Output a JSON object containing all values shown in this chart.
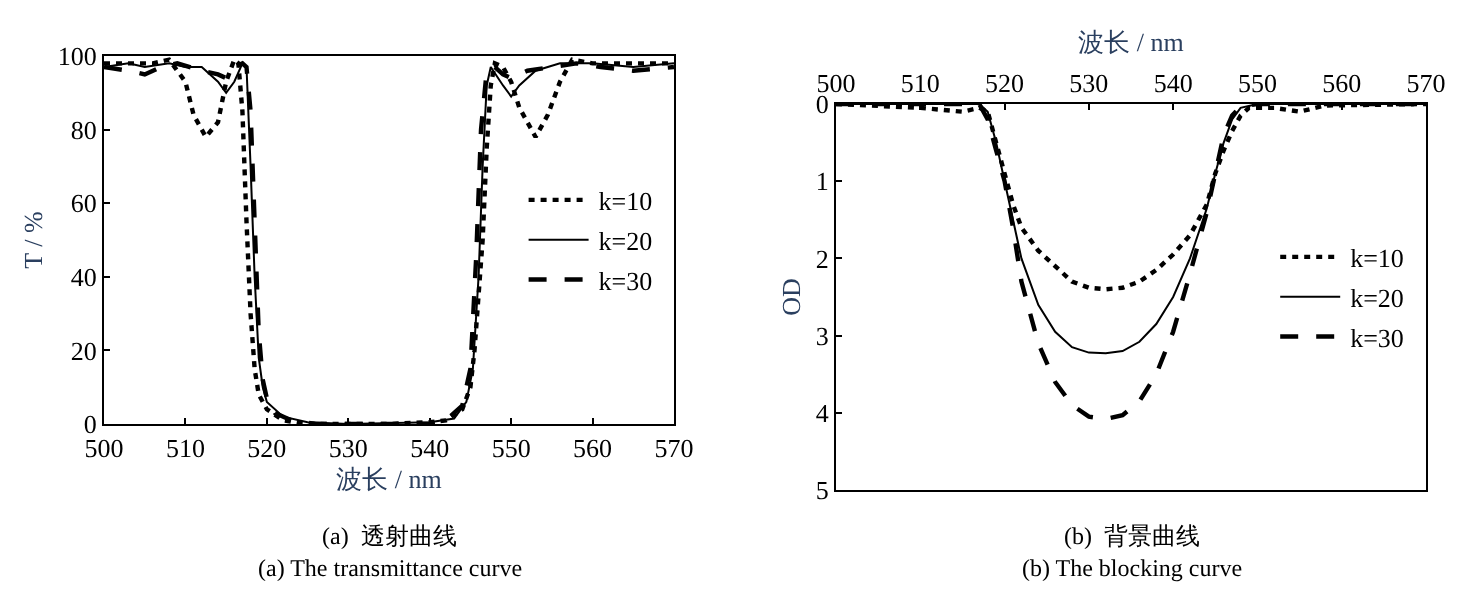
{
  "chart_data": [
    {
      "type": "line",
      "xlabel": "波长 / nm",
      "ylabel": "T / %",
      "xlim": [
        500,
        570
      ],
      "xticks": [
        500,
        510,
        520,
        530,
        540,
        550,
        560,
        570
      ],
      "ylim": [
        0,
        100
      ],
      "yticks": [
        0,
        20,
        40,
        60,
        80,
        100
      ],
      "legend": "right",
      "marker": "none",
      "annotations": [
        "(a)  透射曲线",
        "(a) The transmittance curve"
      ],
      "series": [
        {
          "name": "k=10",
          "color": "#000000",
          "line_style": "dotted",
          "x": [
            500,
            503,
            506,
            508,
            510,
            511,
            512.5,
            514,
            515,
            516,
            516.5,
            517,
            517.5,
            518,
            518.5,
            519,
            520,
            522,
            525,
            535,
            540,
            542,
            544,
            545,
            545.5,
            546.5,
            547,
            547.5,
            548,
            549,
            550,
            551,
            553,
            554.5,
            556,
            557.5,
            560,
            565,
            570
          ],
          "values": [
            98,
            98,
            98,
            99,
            93,
            84,
            78,
            82,
            93,
            99,
            98,
            85,
            55,
            30,
            15,
            8,
            4,
            1,
            0,
            0,
            0.5,
            1,
            4,
            10,
            20,
            50,
            75,
            92,
            98,
            97,
            93,
            86,
            78,
            84,
            93,
            99,
            98,
            98,
            98
          ]
        },
        {
          "name": "k=20",
          "color": "#000000",
          "line_style": "solid",
          "x": [
            500,
            503,
            505,
            508,
            510,
            512,
            514,
            515,
            516,
            517,
            517.5,
            518,
            518.5,
            519,
            519.5,
            520,
            522,
            525,
            530,
            540,
            543,
            544.5,
            545.3,
            546,
            546.5,
            547,
            547.5,
            549,
            550,
            551,
            553,
            556,
            560,
            565,
            570
          ],
          "values": [
            97,
            98,
            97,
            98,
            97,
            97,
            93,
            90,
            93,
            98,
            97,
            70,
            40,
            18,
            10,
            6,
            2,
            0.5,
            0,
            0.5,
            1.5,
            6,
            15,
            40,
            70,
            92,
            97,
            92,
            89,
            92,
            96,
            98,
            98,
            97,
            98
          ]
        },
        {
          "name": "k=30",
          "color": "#000000",
          "line_style": "dashed",
          "x": [
            500,
            503,
            505,
            507,
            509,
            512,
            514,
            515,
            516,
            517,
            517.5,
            518,
            518.5,
            519,
            519.5,
            520,
            521,
            523,
            526,
            540,
            542,
            544,
            545,
            545.7,
            546.3,
            547,
            548,
            549,
            550,
            552,
            555,
            558,
            561,
            565,
            570
          ],
          "values": [
            97,
            96,
            95,
            97,
            98,
            96,
            95,
            94,
            97,
            98,
            97,
            85,
            55,
            25,
            12,
            7,
            3,
            1,
            0,
            0,
            1,
            5,
            15,
            45,
            80,
            96,
            97,
            95,
            94,
            96,
            97,
            98,
            97,
            96,
            97
          ]
        }
      ]
    },
    {
      "type": "line",
      "xlabel": "波长 / nm",
      "ylabel": "OD",
      "xlim": [
        500,
        570
      ],
      "xticks": [
        500,
        510,
        520,
        530,
        540,
        550,
        560,
        570
      ],
      "ylim": [
        5,
        0
      ],
      "yticks": [
        0,
        1,
        2,
        3,
        4,
        5
      ],
      "legend": "right",
      "marker": "none",
      "annotations": [
        "(b)  背景曲线",
        "(b) The blocking curve"
      ],
      "series": [
        {
          "name": "k=10",
          "color": "#000000",
          "line_style": "dotted",
          "x": [
            500,
            510,
            515,
            517,
            518,
            519,
            520,
            521,
            522,
            524,
            526,
            528,
            530,
            532,
            534,
            536,
            538,
            540,
            542,
            544,
            545,
            546,
            547,
            548,
            549,
            552,
            555,
            558,
            570
          ],
          "values": [
            0,
            0.05,
            0.1,
            0.05,
            0.1,
            0.5,
            0.9,
            1.3,
            1.6,
            1.9,
            2.1,
            2.3,
            2.38,
            2.4,
            2.38,
            2.3,
            2.15,
            1.95,
            1.7,
            1.3,
            0.9,
            0.6,
            0.35,
            0.15,
            0.05,
            0.05,
            0.1,
            0.02,
            0
          ]
        },
        {
          "name": "k=20",
          "color": "#000000",
          "line_style": "solid",
          "x": [
            500,
            517,
            518,
            519,
            520,
            521,
            522,
            524,
            526,
            528,
            530,
            532,
            534,
            536,
            538,
            540,
            542,
            544,
            545,
            546,
            547,
            548,
            550,
            570
          ],
          "values": [
            0,
            0,
            0.1,
            0.5,
            1,
            1.5,
            2,
            2.6,
            2.95,
            3.15,
            3.22,
            3.23,
            3.2,
            3.08,
            2.85,
            2.5,
            2,
            1.35,
            0.9,
            0.5,
            0.2,
            0.05,
            0,
            0
          ]
        },
        {
          "name": "k=30",
          "color": "#000000",
          "line_style": "dashed",
          "x": [
            500,
            517,
            518,
            519,
            520,
            521,
            522,
            524,
            526,
            528,
            530,
            532,
            534,
            536,
            538,
            540,
            542,
            544,
            545,
            546,
            547,
            548,
            550,
            570
          ],
          "values": [
            0,
            0,
            0.2,
            0.6,
            1,
            1.6,
            2.3,
            3.1,
            3.6,
            3.9,
            4.05,
            4.08,
            4.03,
            3.85,
            3.5,
            2.95,
            2.2,
            1.4,
            0.9,
            0.4,
            0.15,
            0.03,
            0,
            0
          ]
        }
      ]
    }
  ]
}
